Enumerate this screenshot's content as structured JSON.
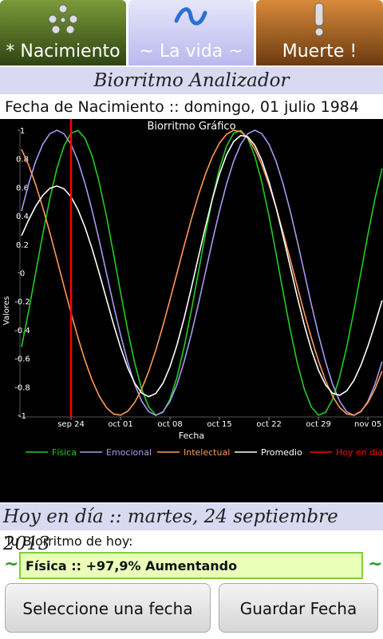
{
  "tabs": [
    "* Nacimiento",
    "~ La vida ~",
    "Muerte !"
  ],
  "header": "Biorritmo Analizador",
  "birth_line": "Fecha de Nacimiento :: domingo, 01 julio 1984",
  "chart_data": {
    "type": "line",
    "title": "Biorritmo Gráfico",
    "x_label": "Fecha",
    "y_label": "Valores",
    "categories": [
      null,
      null,
      null,
      null,
      null,
      null,
      null,
      "sep 24",
      null,
      null,
      null,
      null,
      null,
      null,
      "oct 01",
      null,
      null,
      null,
      null,
      null,
      null,
      "oct 08",
      null,
      null,
      null,
      null,
      null,
      null,
      "oct 15",
      null,
      null,
      null,
      null,
      null,
      null,
      "oct 22",
      null,
      null,
      null,
      null,
      null,
      null,
      "oct 29",
      null,
      null,
      null,
      null,
      null,
      null,
      "nov 05",
      null,
      null
    ],
    "series": [
      {
        "name": "Física",
        "color": "#22cc22",
        "values": [
          -0.52,
          -0.27,
          0,
          0.27,
          0.52,
          0.731,
          0.888,
          0.979,
          0.998,
          0.942,
          0.817,
          0.631,
          0.398,
          0.136,
          -0.136,
          -0.398,
          -0.631,
          -0.817,
          -0.942,
          -0.998,
          -0.979,
          -0.888,
          -0.731,
          -0.52,
          -0.27,
          0,
          0.27,
          0.52,
          0.731,
          0.888,
          0.979,
          0.998,
          0.942,
          0.817,
          0.631,
          0.398,
          0.136,
          -0.136,
          -0.398,
          -0.631,
          -0.817,
          -0.942,
          -0.998,
          -0.979,
          -0.888,
          -0.731,
          -0.52,
          -0.27,
          0,
          0.27,
          0.52,
          0.731
        ]
      },
      {
        "name": "Emocional",
        "color": "#aa99ee",
        "values": [
          0.434,
          0.623,
          0.782,
          0.901,
          0.975,
          1,
          0.975,
          0.901,
          0.782,
          0.623,
          0.434,
          0.223,
          0,
          -0.223,
          -0.434,
          -0.623,
          -0.782,
          -0.901,
          -0.975,
          -1,
          -0.975,
          -0.901,
          -0.782,
          -0.623,
          -0.434,
          -0.223,
          0,
          0.223,
          0.434,
          0.623,
          0.782,
          0.901,
          0.975,
          1,
          0.975,
          0.901,
          0.782,
          0.623,
          0.434,
          0.223,
          0,
          -0.223,
          -0.434,
          -0.623,
          -0.782,
          -0.901,
          -0.975,
          -1,
          -0.975,
          -0.901,
          -0.782,
          -0.623
        ]
      },
      {
        "name": "Intelectual",
        "color": "#ff9955",
        "values": [
          0.866,
          0.756,
          0.618,
          0.458,
          0.282,
          0.095,
          -0.095,
          -0.282,
          -0.458,
          -0.618,
          -0.756,
          -0.866,
          -0.945,
          -0.99,
          -0.999,
          -0.972,
          -0.91,
          -0.815,
          -0.69,
          -0.541,
          -0.372,
          -0.189,
          0,
          0.189,
          0.372,
          0.541,
          0.69,
          0.815,
          0.91,
          0.972,
          0.999,
          0.99,
          0.945,
          0.866,
          0.756,
          0.618,
          0.458,
          0.282,
          0.095,
          -0.095,
          -0.282,
          -0.458,
          -0.618,
          -0.756,
          -0.866,
          -0.945,
          -0.99,
          -0.999,
          -0.972,
          -0.91,
          -0.815,
          -0.69
        ]
      },
      {
        "name": "Promedio",
        "color": "#ffffff",
        "values": [
          0.26,
          0.37,
          0.467,
          0.543,
          0.592,
          0.609,
          0.589,
          0.533,
          0.441,
          0.316,
          0.165,
          -0.004,
          -0.182,
          -0.359,
          -0.523,
          -0.664,
          -0.774,
          -0.844,
          -0.869,
          -0.846,
          -0.775,
          -0.659,
          -0.504,
          -0.318,
          -0.111,
          0.106,
          0.32,
          0.519,
          0.692,
          0.828,
          0.92,
          0.963,
          0.954,
          0.894,
          0.787,
          0.639,
          0.459,
          0.256,
          0.044,
          -0.168,
          -0.366,
          -0.541,
          -0.683,
          -0.786,
          -0.845,
          -0.859,
          -0.828,
          -0.756,
          -0.649,
          -0.514,
          -0.359,
          -0.194
        ]
      }
    ],
    "marker": {
      "name": "Hoy en día",
      "color": "#ff0000",
      "index": 7
    },
    "ylim": [
      -1,
      1
    ],
    "yticks": [
      1,
      0.8,
      0.6,
      0.4,
      0.2,
      0,
      -0.2,
      -0.4,
      -0.6,
      -0.8,
      -1
    ],
    "grid": false,
    "legend": "bottom"
  },
  "today_line": "Hoy en día :: martes, 24 septiembre 2013",
  "today_label": "Tu Biorritmo de hoy:",
  "status": {
    "left_mark": "~",
    "text": "Física :: +97,9% Aumentando",
    "right_mark": "~"
  },
  "buttons": [
    "Seleccione una fecha",
    "Guardar Fecha"
  ]
}
